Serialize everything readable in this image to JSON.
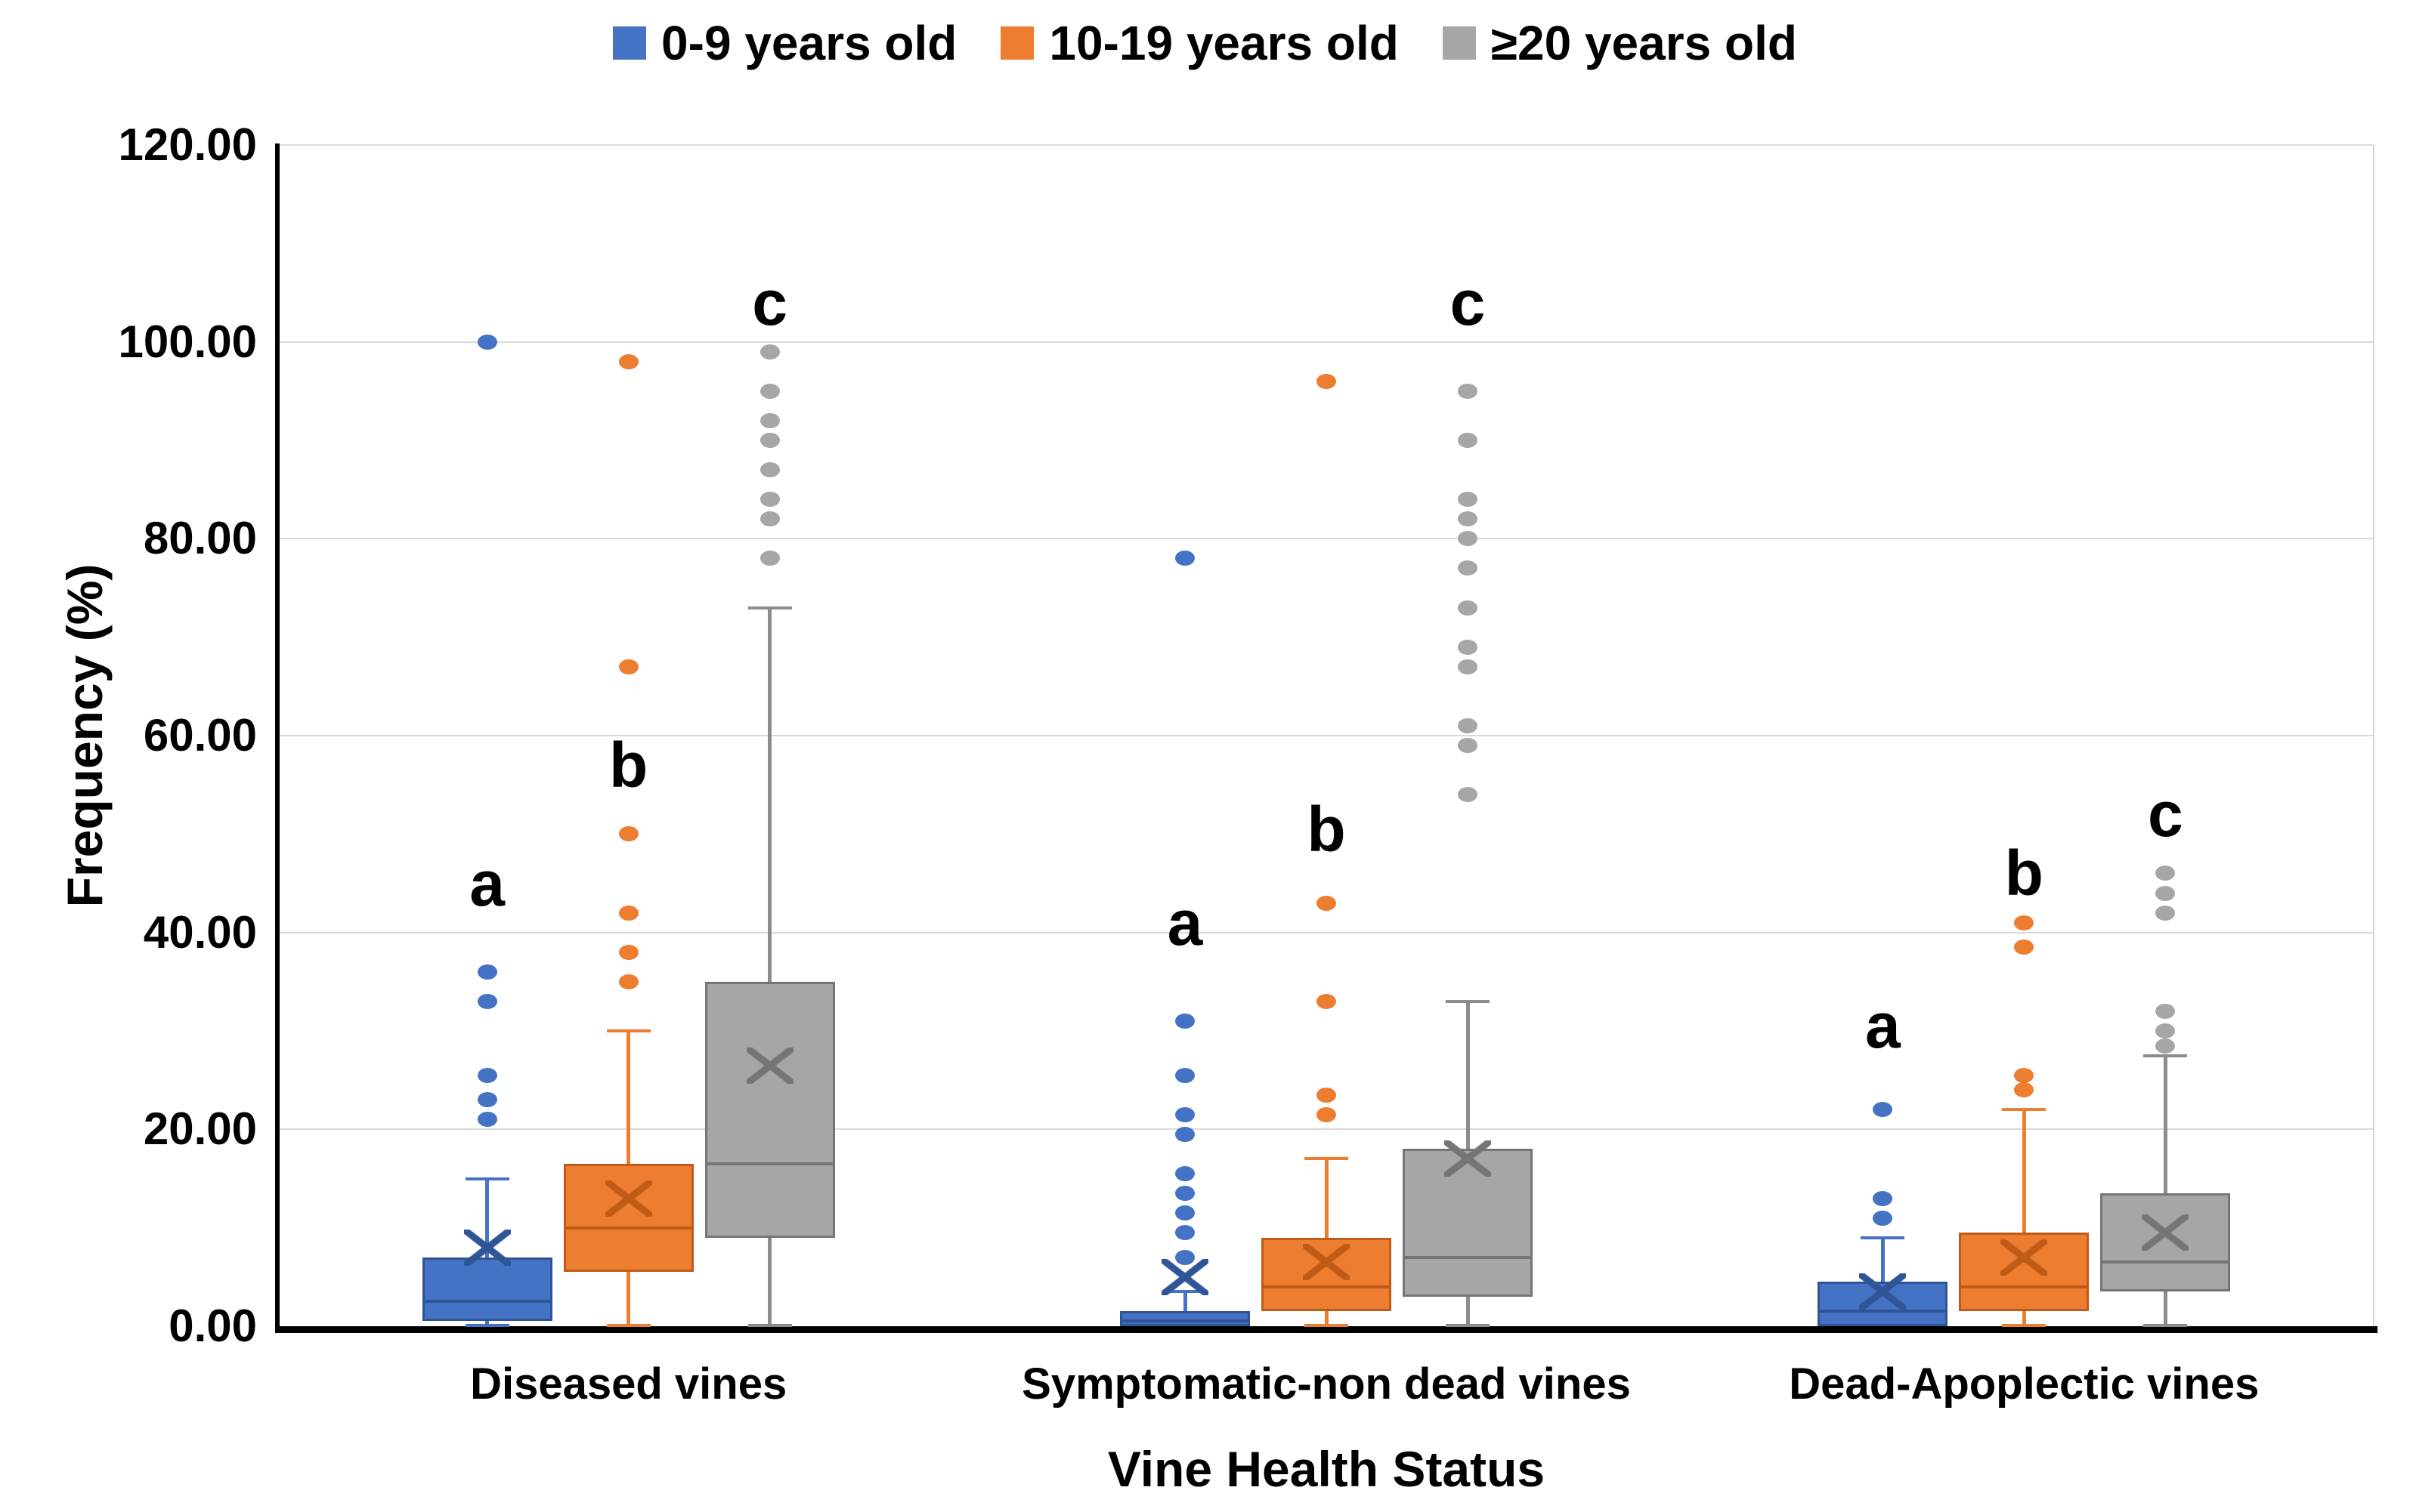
{
  "chart_data": {
    "type": "box",
    "title": "",
    "xlabel": "Vine Health Status",
    "ylabel": "Frequency (%)",
    "ylim": [
      0,
      120
    ],
    "y_tick_step": 20,
    "y_ticks": [
      "0.00",
      "20.00",
      "40.00",
      "60.00",
      "80.00",
      "100.00",
      "120.00"
    ],
    "grid": true,
    "legend_position": "top",
    "categories": [
      "Diseased vines",
      "Symptomatic-non dead vines",
      "Dead-Apoplectic vines"
    ],
    "series": [
      {
        "name": "0-9 years old",
        "color": "#4472C4",
        "accent": "#2F5597",
        "whisker_color": "#4472C4",
        "boxes": [
          {
            "min": 0,
            "q1": 0.5,
            "median": 2.5,
            "q3": 7,
            "whisker_high": 15,
            "mean": 8,
            "outliers": [
              100,
              36,
              33,
              25.5,
              23,
              21
            ],
            "sig": "a",
            "sig_y": 45
          },
          {
            "min": 0,
            "q1": 0,
            "median": 0.5,
            "q3": 1.5,
            "whisker_high": 3.5,
            "mean": 5,
            "outliers": [
              78,
              31,
              25.5,
              21.5,
              19.5,
              15.5,
              13.5,
              11.5,
              9.5,
              7
            ],
            "sig": "a",
            "sig_y": 41
          },
          {
            "min": 0,
            "q1": 0,
            "median": 1.5,
            "q3": 4.5,
            "whisker_high": 9,
            "mean": 3.5,
            "outliers": [
              22,
              13,
              11
            ],
            "sig": "a",
            "sig_y": 30.5
          }
        ]
      },
      {
        "name": "10-19 years old",
        "color": "#ED7D31",
        "accent": "#BF5B17",
        "whisker_color": "#ED7D31",
        "boxes": [
          {
            "min": 0,
            "q1": 5.5,
            "median": 10,
            "q3": 16.5,
            "whisker_high": 30,
            "mean": 13,
            "outliers": [
              98,
              67,
              50,
              42,
              38,
              35
            ],
            "sig": "b",
            "sig_y": 57
          },
          {
            "min": 0,
            "q1": 1.5,
            "median": 4,
            "q3": 9,
            "whisker_high": 17,
            "mean": 6.5,
            "outliers": [
              96,
              43,
              33,
              23.5,
              21.5
            ],
            "sig": "b",
            "sig_y": 50.5
          },
          {
            "min": 0,
            "q1": 1.5,
            "median": 4,
            "q3": 9.5,
            "whisker_high": 22,
            "mean": 7,
            "outliers": [
              41,
              38.5,
              25.5,
              24
            ],
            "sig": "b",
            "sig_y": 46
          }
        ]
      },
      {
        "name": "≥20 years old",
        "color": "#A6A6A6",
        "accent": "#757575",
        "whisker_color": "#8C8C8C",
        "boxes": [
          {
            "min": 0,
            "q1": 9,
            "median": 16.5,
            "q3": 35,
            "whisker_high": 73,
            "mean": 26.5,
            "outliers": [
              99,
              95,
              92,
              90,
              87,
              84,
              82,
              78
            ],
            "sig": "c",
            "sig_y": 104
          },
          {
            "min": 0,
            "q1": 3,
            "median": 7,
            "q3": 18,
            "whisker_high": 33,
            "mean": 17,
            "outliers": [
              95,
              90,
              84,
              82,
              80,
              77,
              73,
              69,
              67,
              61,
              59,
              54
            ],
            "sig": "c",
            "sig_y": 104
          },
          {
            "min": 0,
            "q1": 3.5,
            "median": 6.5,
            "q3": 13.5,
            "whisker_high": 27.5,
            "mean": 9.5,
            "outliers": [
              46,
              44,
              42,
              32,
              30,
              28.5
            ],
            "sig": "c",
            "sig_y": 52
          }
        ]
      }
    ]
  }
}
